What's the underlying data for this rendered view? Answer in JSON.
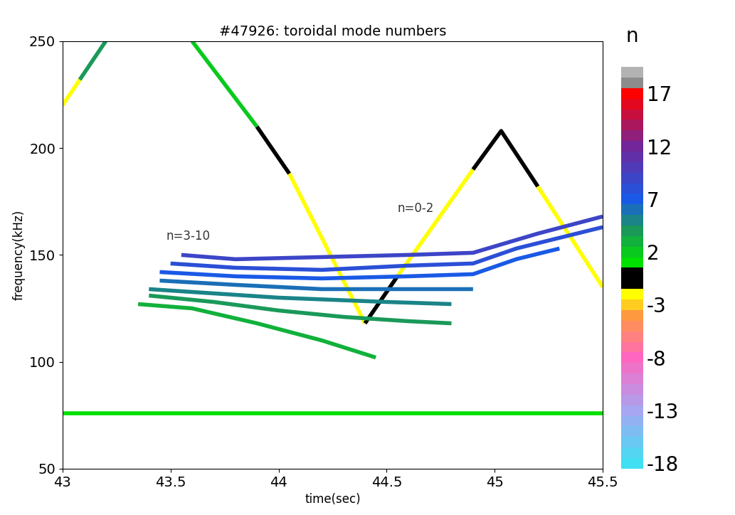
{
  "chart_data": {
    "type": "line",
    "title": "#47926: toroidal mode numbers",
    "x_label": "time(sec)",
    "y_label": "frequency(kHz)",
    "xlim": [
      43,
      45.5
    ],
    "xticks": [
      43,
      43.5,
      44,
      44.5,
      45,
      45.5
    ],
    "ylim": [
      50,
      250
    ],
    "yticks": [
      50,
      100,
      150,
      200,
      250
    ],
    "colorbar": {
      "label": "n",
      "range": [
        -18.5,
        19.5
      ],
      "ticks": [
        17,
        12,
        7,
        2,
        -3,
        -8,
        -13,
        -18
      ]
    },
    "annotations": [
      {
        "text": "n=3-10",
        "x": 43.48,
        "y": 157
      },
      {
        "text": "n=0-2",
        "x": 44.55,
        "y": 170
      }
    ],
    "series": [
      {
        "n": -2,
        "x": [
          43.0,
          43.08
        ],
        "values": [
          220,
          232
        ]
      },
      {
        "n": 4,
        "x": [
          43.08,
          43.2
        ],
        "values": [
          232,
          250
        ]
      },
      {
        "n": 2,
        "x": [
          43.6,
          43.9
        ],
        "values": [
          250,
          210
        ]
      },
      {
        "n": 0,
        "x": [
          43.9,
          44.05
        ],
        "values": [
          210,
          188
        ]
      },
      {
        "n": -2,
        "x": [
          44.05,
          44.4
        ],
        "values": [
          188,
          118
        ]
      },
      {
        "n": 0,
        "x": [
          44.4,
          44.55
        ],
        "values": [
          118,
          140
        ]
      },
      {
        "n": -2,
        "x": [
          44.55,
          44.9
        ],
        "values": [
          140,
          190
        ]
      },
      {
        "n": 0,
        "x": [
          44.9,
          45.03,
          45.2
        ],
        "values": [
          190,
          208,
          182
        ]
      },
      {
        "n": -2,
        "x": [
          45.2,
          45.5
        ],
        "values": [
          182,
          135
        ]
      },
      {
        "n": 1,
        "x": [
          43.0,
          43.3,
          43.6,
          44.0,
          44.5,
          45.0,
          45.5
        ],
        "values": [
          76,
          76,
          76,
          76,
          76,
          76,
          76
        ]
      },
      {
        "n": 3,
        "x": [
          43.35,
          43.6,
          43.9,
          44.2,
          44.45
        ],
        "values": [
          127,
          125,
          118,
          110,
          102
        ]
      },
      {
        "n": 4,
        "x": [
          43.4,
          43.7,
          44.0,
          44.3,
          44.6,
          44.8
        ],
        "values": [
          131,
          128,
          124,
          121,
          119,
          118
        ]
      },
      {
        "n": 5,
        "x": [
          43.4,
          43.7,
          44.0,
          44.5,
          44.8
        ],
        "values": [
          134,
          132,
          130,
          128,
          127
        ]
      },
      {
        "n": 6,
        "x": [
          43.45,
          43.8,
          44.2,
          44.6,
          44.9
        ],
        "values": [
          138,
          136,
          134,
          134,
          134
        ]
      },
      {
        "n": 7,
        "x": [
          43.45,
          43.8,
          44.2,
          44.6,
          44.9,
          45.1,
          45.3
        ],
        "values": [
          142,
          140,
          139,
          140,
          141,
          148,
          153
        ]
      },
      {
        "n": 8,
        "x": [
          43.5,
          43.8,
          44.2,
          44.6,
          44.9,
          45.1,
          45.5
        ],
        "values": [
          146,
          144,
          143,
          145,
          146,
          153,
          163
        ]
      },
      {
        "n": 9,
        "x": [
          43.55,
          43.8,
          44.2,
          44.6,
          44.9,
          45.2,
          45.5
        ],
        "values": [
          150,
          148,
          149,
          150,
          151,
          160,
          168
        ]
      }
    ]
  }
}
